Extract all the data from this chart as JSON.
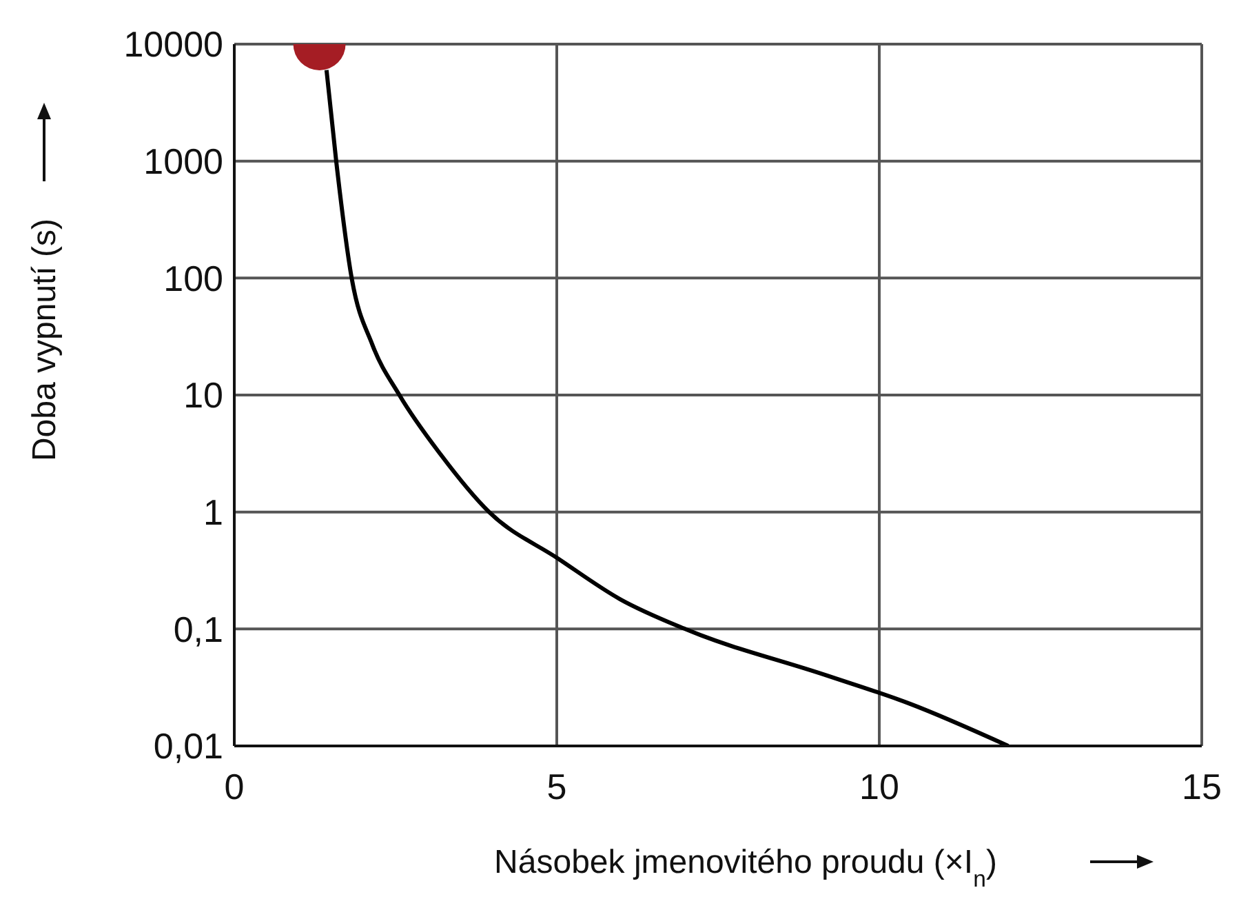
{
  "chart_data": {
    "type": "line",
    "xlabel": "Násobek jmenovitého proudu (×I$_{n}$)",
    "ylabel": "Doba vypnutí (s)",
    "log": "y",
    "grid": true,
    "xlim": [
      0,
      15
    ],
    "xticks": [
      0,
      5,
      10,
      15
    ],
    "ylim": [
      0.01,
      10000
    ],
    "yticks": [
      {
        "value": 0.01,
        "label": "0,01"
      },
      {
        "value": 0.1,
        "label": "0,1"
      },
      1,
      10,
      100,
      1000,
      10000
    ],
    "series": [
      {
        "color": "#000000",
        "marker": "none",
        "x": [
          1.43,
          1.58,
          1.82,
          2.14,
          2.56,
          3.2,
          3.95,
          5.02,
          5.98,
          6.99,
          9.19,
          10.47,
          12.0
        ],
        "values": [
          6000,
          1000,
          100,
          27,
          10,
          3.1,
          1,
          0.4,
          0.18,
          0.1,
          0.04,
          0.023,
          0.01
        ]
      },
      {
        "type": "scatter",
        "color": "#a51d24",
        "marker": "circle",
        "x": [
          1.32
        ],
        "values": [
          10000
        ]
      }
    ]
  }
}
